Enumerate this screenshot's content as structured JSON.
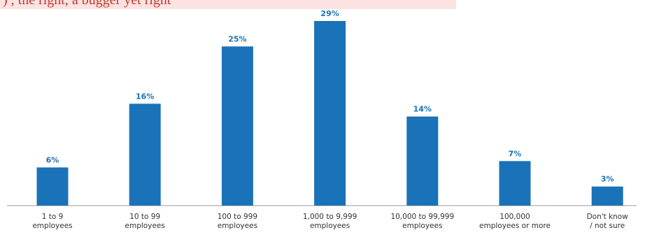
{
  "banner": {
    "text": ") , the right, a bugger yet right"
  },
  "chart_data": {
    "type": "bar",
    "title": "",
    "xlabel": "",
    "ylabel": "",
    "ylim": [
      0,
      30
    ],
    "grid": false,
    "legend": "none",
    "value_suffix": "%",
    "bar_color": "#1a73b8",
    "label_color": "#1a73b8",
    "categories": [
      [
        "1 to 9",
        "employees"
      ],
      [
        "10 to 99",
        "employees"
      ],
      [
        "100 to 999",
        "employees"
      ],
      [
        "1,000 to 9,999",
        "employees"
      ],
      [
        "10,000 to 99,999",
        "employees"
      ],
      [
        "100,000",
        "employees or more"
      ],
      [
        "Don't know",
        "/ not sure"
      ]
    ],
    "values": [
      6,
      16,
      25,
      29,
      14,
      7,
      3
    ]
  }
}
